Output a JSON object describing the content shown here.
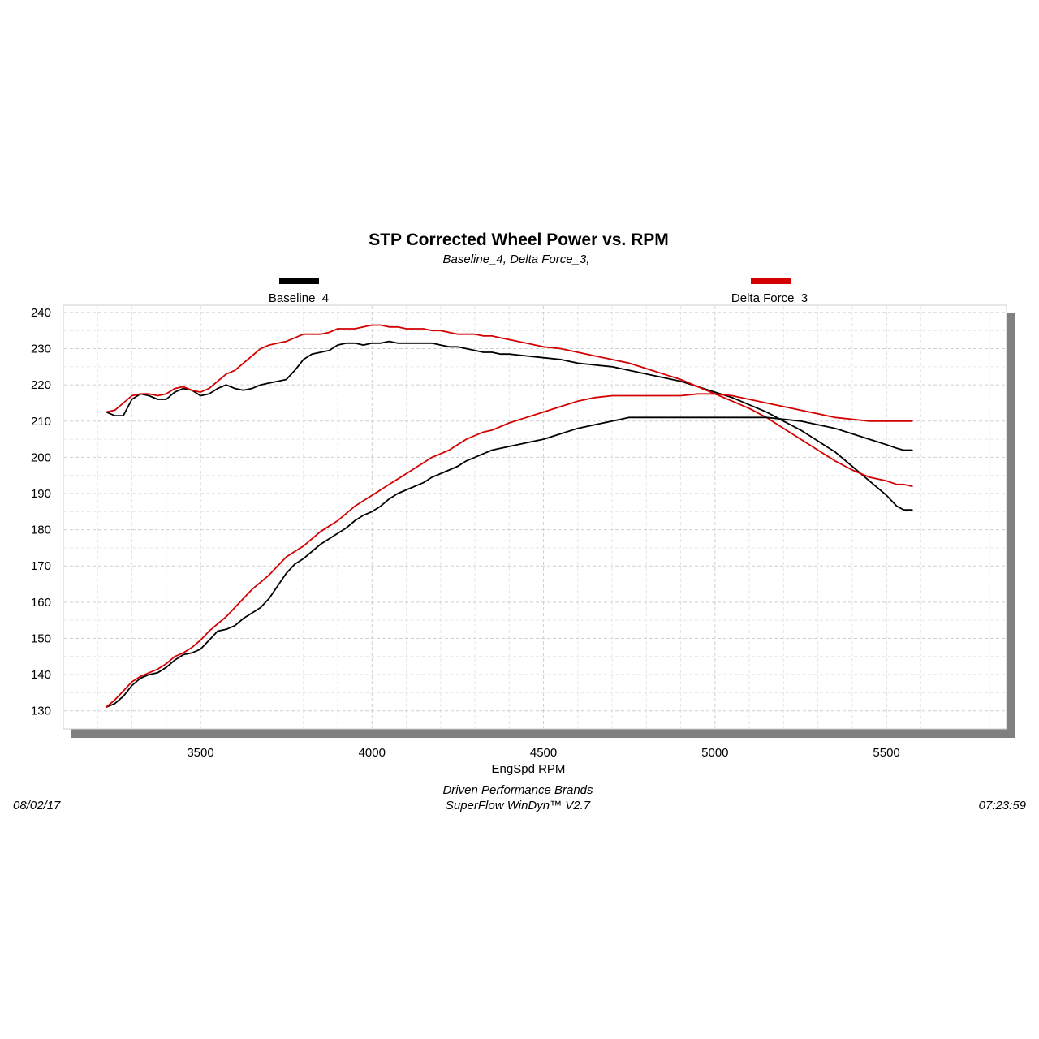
{
  "chart_data": {
    "type": "line",
    "title": "STP Corrected Wheel Power vs. RPM",
    "subtitle": "Baseline_4, Delta Force_3,",
    "xlabel": "EngSpd  RPM",
    "ylabel": "",
    "xlim": [
      3100,
      5850
    ],
    "ylim": [
      125,
      242
    ],
    "x_ticks": [
      3500,
      4000,
      4500,
      5000,
      5500
    ],
    "y_ticks": [
      130,
      140,
      150,
      160,
      170,
      180,
      190,
      200,
      210,
      220,
      230,
      240
    ],
    "grid": true,
    "legend": [
      {
        "name": "Baseline_4",
        "color": "#000000"
      },
      {
        "name": "Delta Force_3",
        "color": "#d40000"
      }
    ],
    "series": [
      {
        "name": "Baseline_4",
        "metric": "torque",
        "color": "#000000",
        "points": [
          [
            3225,
            212.5
          ],
          [
            3250,
            211.5
          ],
          [
            3275,
            211.5
          ],
          [
            3300,
            216
          ],
          [
            3325,
            217.5
          ],
          [
            3350,
            217
          ],
          [
            3375,
            216
          ],
          [
            3400,
            216
          ],
          [
            3425,
            218
          ],
          [
            3450,
            219
          ],
          [
            3475,
            218.5
          ],
          [
            3500,
            217
          ],
          [
            3525,
            217.5
          ],
          [
            3550,
            219
          ],
          [
            3575,
            220
          ],
          [
            3600,
            219
          ],
          [
            3625,
            218.5
          ],
          [
            3650,
            219
          ],
          [
            3675,
            220
          ],
          [
            3700,
            220.5
          ],
          [
            3725,
            221
          ],
          [
            3750,
            221.5
          ],
          [
            3775,
            224
          ],
          [
            3800,
            227
          ],
          [
            3825,
            228.5
          ],
          [
            3850,
            229
          ],
          [
            3875,
            229.5
          ],
          [
            3900,
            231
          ],
          [
            3925,
            231.5
          ],
          [
            3950,
            231.5
          ],
          [
            3975,
            231
          ],
          [
            4000,
            231.5
          ],
          [
            4025,
            231.5
          ],
          [
            4050,
            232
          ],
          [
            4075,
            231.5
          ],
          [
            4100,
            231.5
          ],
          [
            4125,
            231.5
          ],
          [
            4150,
            231.5
          ],
          [
            4175,
            231.5
          ],
          [
            4200,
            231
          ],
          [
            4225,
            230.5
          ],
          [
            4250,
            230.5
          ],
          [
            4275,
            230
          ],
          [
            4300,
            229.5
          ],
          [
            4325,
            229
          ],
          [
            4350,
            229
          ],
          [
            4375,
            228.5
          ],
          [
            4400,
            228.5
          ],
          [
            4450,
            228
          ],
          [
            4500,
            227.5
          ],
          [
            4550,
            227
          ],
          [
            4600,
            226
          ],
          [
            4650,
            225.5
          ],
          [
            4700,
            225
          ],
          [
            4750,
            224
          ],
          [
            4800,
            223
          ],
          [
            4850,
            222
          ],
          [
            4900,
            221
          ],
          [
            4950,
            219.5
          ],
          [
            5000,
            218
          ],
          [
            5050,
            216.5
          ],
          [
            5100,
            214.5
          ],
          [
            5150,
            212.5
          ],
          [
            5200,
            210
          ],
          [
            5250,
            207.5
          ],
          [
            5300,
            204.5
          ],
          [
            5350,
            201.5
          ],
          [
            5400,
            197.5
          ],
          [
            5450,
            193.5
          ],
          [
            5500,
            189.5
          ],
          [
            5530,
            186.5
          ],
          [
            5550,
            185.5
          ],
          [
            5575,
            185.5
          ]
        ]
      },
      {
        "name": "Delta Force_3",
        "metric": "torque",
        "color": "#d40000",
        "points": [
          [
            3225,
            212.5
          ],
          [
            3250,
            213
          ],
          [
            3275,
            215
          ],
          [
            3300,
            217
          ],
          [
            3325,
            217.5
          ],
          [
            3350,
            217.5
          ],
          [
            3375,
            217
          ],
          [
            3400,
            217.5
          ],
          [
            3425,
            219
          ],
          [
            3450,
            219.5
          ],
          [
            3475,
            218.5
          ],
          [
            3500,
            218
          ],
          [
            3525,
            219
          ],
          [
            3550,
            221
          ],
          [
            3575,
            223
          ],
          [
            3600,
            224
          ],
          [
            3625,
            226
          ],
          [
            3650,
            228
          ],
          [
            3675,
            230
          ],
          [
            3700,
            231
          ],
          [
            3725,
            231.5
          ],
          [
            3750,
            232
          ],
          [
            3775,
            233
          ],
          [
            3800,
            234
          ],
          [
            3825,
            234
          ],
          [
            3850,
            234
          ],
          [
            3875,
            234.5
          ],
          [
            3900,
            235.5
          ],
          [
            3925,
            235.5
          ],
          [
            3950,
            235.5
          ],
          [
            3975,
            236
          ],
          [
            4000,
            236.5
          ],
          [
            4025,
            236.5
          ],
          [
            4050,
            236
          ],
          [
            4075,
            236
          ],
          [
            4100,
            235.5
          ],
          [
            4125,
            235.5
          ],
          [
            4150,
            235.5
          ],
          [
            4175,
            235
          ],
          [
            4200,
            235
          ],
          [
            4225,
            234.5
          ],
          [
            4250,
            234
          ],
          [
            4275,
            234
          ],
          [
            4300,
            234
          ],
          [
            4325,
            233.5
          ],
          [
            4350,
            233.5
          ],
          [
            4375,
            233
          ],
          [
            4400,
            232.5
          ],
          [
            4450,
            231.5
          ],
          [
            4500,
            230.5
          ],
          [
            4550,
            230
          ],
          [
            4600,
            229
          ],
          [
            4650,
            228
          ],
          [
            4700,
            227
          ],
          [
            4750,
            226
          ],
          [
            4800,
            224.5
          ],
          [
            4850,
            223
          ],
          [
            4900,
            221.5
          ],
          [
            4950,
            219.5
          ],
          [
            5000,
            217.5
          ],
          [
            5050,
            215.5
          ],
          [
            5100,
            213.5
          ],
          [
            5150,
            211
          ],
          [
            5200,
            208
          ],
          [
            5250,
            205
          ],
          [
            5300,
            202
          ],
          [
            5350,
            199
          ],
          [
            5400,
            196.5
          ],
          [
            5450,
            194.5
          ],
          [
            5500,
            193.5
          ],
          [
            5530,
            192.5
          ],
          [
            5550,
            192.5
          ],
          [
            5575,
            192
          ]
        ]
      },
      {
        "name": "Baseline_4",
        "metric": "power",
        "color": "#000000",
        "points": [
          [
            3225,
            131
          ],
          [
            3250,
            132
          ],
          [
            3275,
            134
          ],
          [
            3300,
            137
          ],
          [
            3325,
            139
          ],
          [
            3350,
            140
          ],
          [
            3375,
            140.5
          ],
          [
            3400,
            142
          ],
          [
            3425,
            144
          ],
          [
            3450,
            145.5
          ],
          [
            3475,
            146
          ],
          [
            3500,
            147
          ],
          [
            3525,
            149.5
          ],
          [
            3550,
            152
          ],
          [
            3575,
            152.5
          ],
          [
            3600,
            153.5
          ],
          [
            3625,
            155.5
          ],
          [
            3650,
            157
          ],
          [
            3675,
            158.5
          ],
          [
            3700,
            161
          ],
          [
            3725,
            164.5
          ],
          [
            3750,
            168
          ],
          [
            3775,
            170.5
          ],
          [
            3800,
            172
          ],
          [
            3825,
            174
          ],
          [
            3850,
            176
          ],
          [
            3875,
            177.5
          ],
          [
            3900,
            179
          ],
          [
            3925,
            180.5
          ],
          [
            3950,
            182.5
          ],
          [
            3975,
            184
          ],
          [
            4000,
            185
          ],
          [
            4025,
            186.5
          ],
          [
            4050,
            188.5
          ],
          [
            4075,
            190
          ],
          [
            4100,
            191
          ],
          [
            4125,
            192
          ],
          [
            4150,
            193
          ],
          [
            4175,
            194.5
          ],
          [
            4200,
            195.5
          ],
          [
            4225,
            196.5
          ],
          [
            4250,
            197.5
          ],
          [
            4275,
            199
          ],
          [
            4300,
            200
          ],
          [
            4325,
            201
          ],
          [
            4350,
            202
          ],
          [
            4375,
            202.5
          ],
          [
            4400,
            203
          ],
          [
            4450,
            204
          ],
          [
            4500,
            205
          ],
          [
            4550,
            206.5
          ],
          [
            4600,
            208
          ],
          [
            4650,
            209
          ],
          [
            4700,
            210
          ],
          [
            4750,
            211
          ],
          [
            4800,
            211
          ],
          [
            4850,
            211
          ],
          [
            4900,
            211
          ],
          [
            4950,
            211
          ],
          [
            5000,
            211
          ],
          [
            5050,
            211
          ],
          [
            5100,
            211
          ],
          [
            5150,
            211
          ],
          [
            5200,
            210.5
          ],
          [
            5250,
            210
          ],
          [
            5300,
            209
          ],
          [
            5350,
            208
          ],
          [
            5400,
            206.5
          ],
          [
            5450,
            205
          ],
          [
            5500,
            203.5
          ],
          [
            5530,
            202.5
          ],
          [
            5550,
            202
          ],
          [
            5575,
            202
          ]
        ]
      },
      {
        "name": "Delta Force_3",
        "metric": "power",
        "color": "#d40000",
        "points": [
          [
            3225,
            131
          ],
          [
            3250,
            133
          ],
          [
            3275,
            135.5
          ],
          [
            3300,
            138
          ],
          [
            3325,
            139.5
          ],
          [
            3350,
            140.5
          ],
          [
            3375,
            141.5
          ],
          [
            3400,
            143
          ],
          [
            3425,
            145
          ],
          [
            3450,
            146
          ],
          [
            3475,
            147.5
          ],
          [
            3500,
            149.5
          ],
          [
            3525,
            152
          ],
          [
            3550,
            154
          ],
          [
            3575,
            156
          ],
          [
            3600,
            158.5
          ],
          [
            3625,
            161
          ],
          [
            3650,
            163.5
          ],
          [
            3675,
            165.5
          ],
          [
            3700,
            167.5
          ],
          [
            3725,
            170
          ],
          [
            3750,
            172.5
          ],
          [
            3775,
            174
          ],
          [
            3800,
            175.5
          ],
          [
            3825,
            177.5
          ],
          [
            3850,
            179.5
          ],
          [
            3875,
            181
          ],
          [
            3900,
            182.5
          ],
          [
            3925,
            184.5
          ],
          [
            3950,
            186.5
          ],
          [
            3975,
            188
          ],
          [
            4000,
            189.5
          ],
          [
            4025,
            191
          ],
          [
            4050,
            192.5
          ],
          [
            4075,
            194
          ],
          [
            4100,
            195.5
          ],
          [
            4125,
            197
          ],
          [
            4150,
            198.5
          ],
          [
            4175,
            200
          ],
          [
            4200,
            201
          ],
          [
            4225,
            202
          ],
          [
            4250,
            203.5
          ],
          [
            4275,
            205
          ],
          [
            4300,
            206
          ],
          [
            4325,
            207
          ],
          [
            4350,
            207.5
          ],
          [
            4375,
            208.5
          ],
          [
            4400,
            209.5
          ],
          [
            4450,
            211
          ],
          [
            4500,
            212.5
          ],
          [
            4550,
            214
          ],
          [
            4600,
            215.5
          ],
          [
            4650,
            216.5
          ],
          [
            4700,
            217
          ],
          [
            4750,
            217
          ],
          [
            4800,
            217
          ],
          [
            4850,
            217
          ],
          [
            4900,
            217
          ],
          [
            4950,
            217.5
          ],
          [
            5000,
            217.5
          ],
          [
            5050,
            217
          ],
          [
            5100,
            216
          ],
          [
            5150,
            215
          ],
          [
            5200,
            214
          ],
          [
            5250,
            213
          ],
          [
            5300,
            212
          ],
          [
            5350,
            211
          ],
          [
            5400,
            210.5
          ],
          [
            5450,
            210
          ],
          [
            5500,
            210
          ],
          [
            5530,
            210
          ],
          [
            5550,
            210
          ],
          [
            5575,
            210
          ]
        ]
      }
    ]
  },
  "footer": {
    "date": "08/02/17",
    "company": "Driven Performance Brands",
    "software": "SuperFlow WinDyn™  V2.7",
    "time": "07:23:59"
  }
}
